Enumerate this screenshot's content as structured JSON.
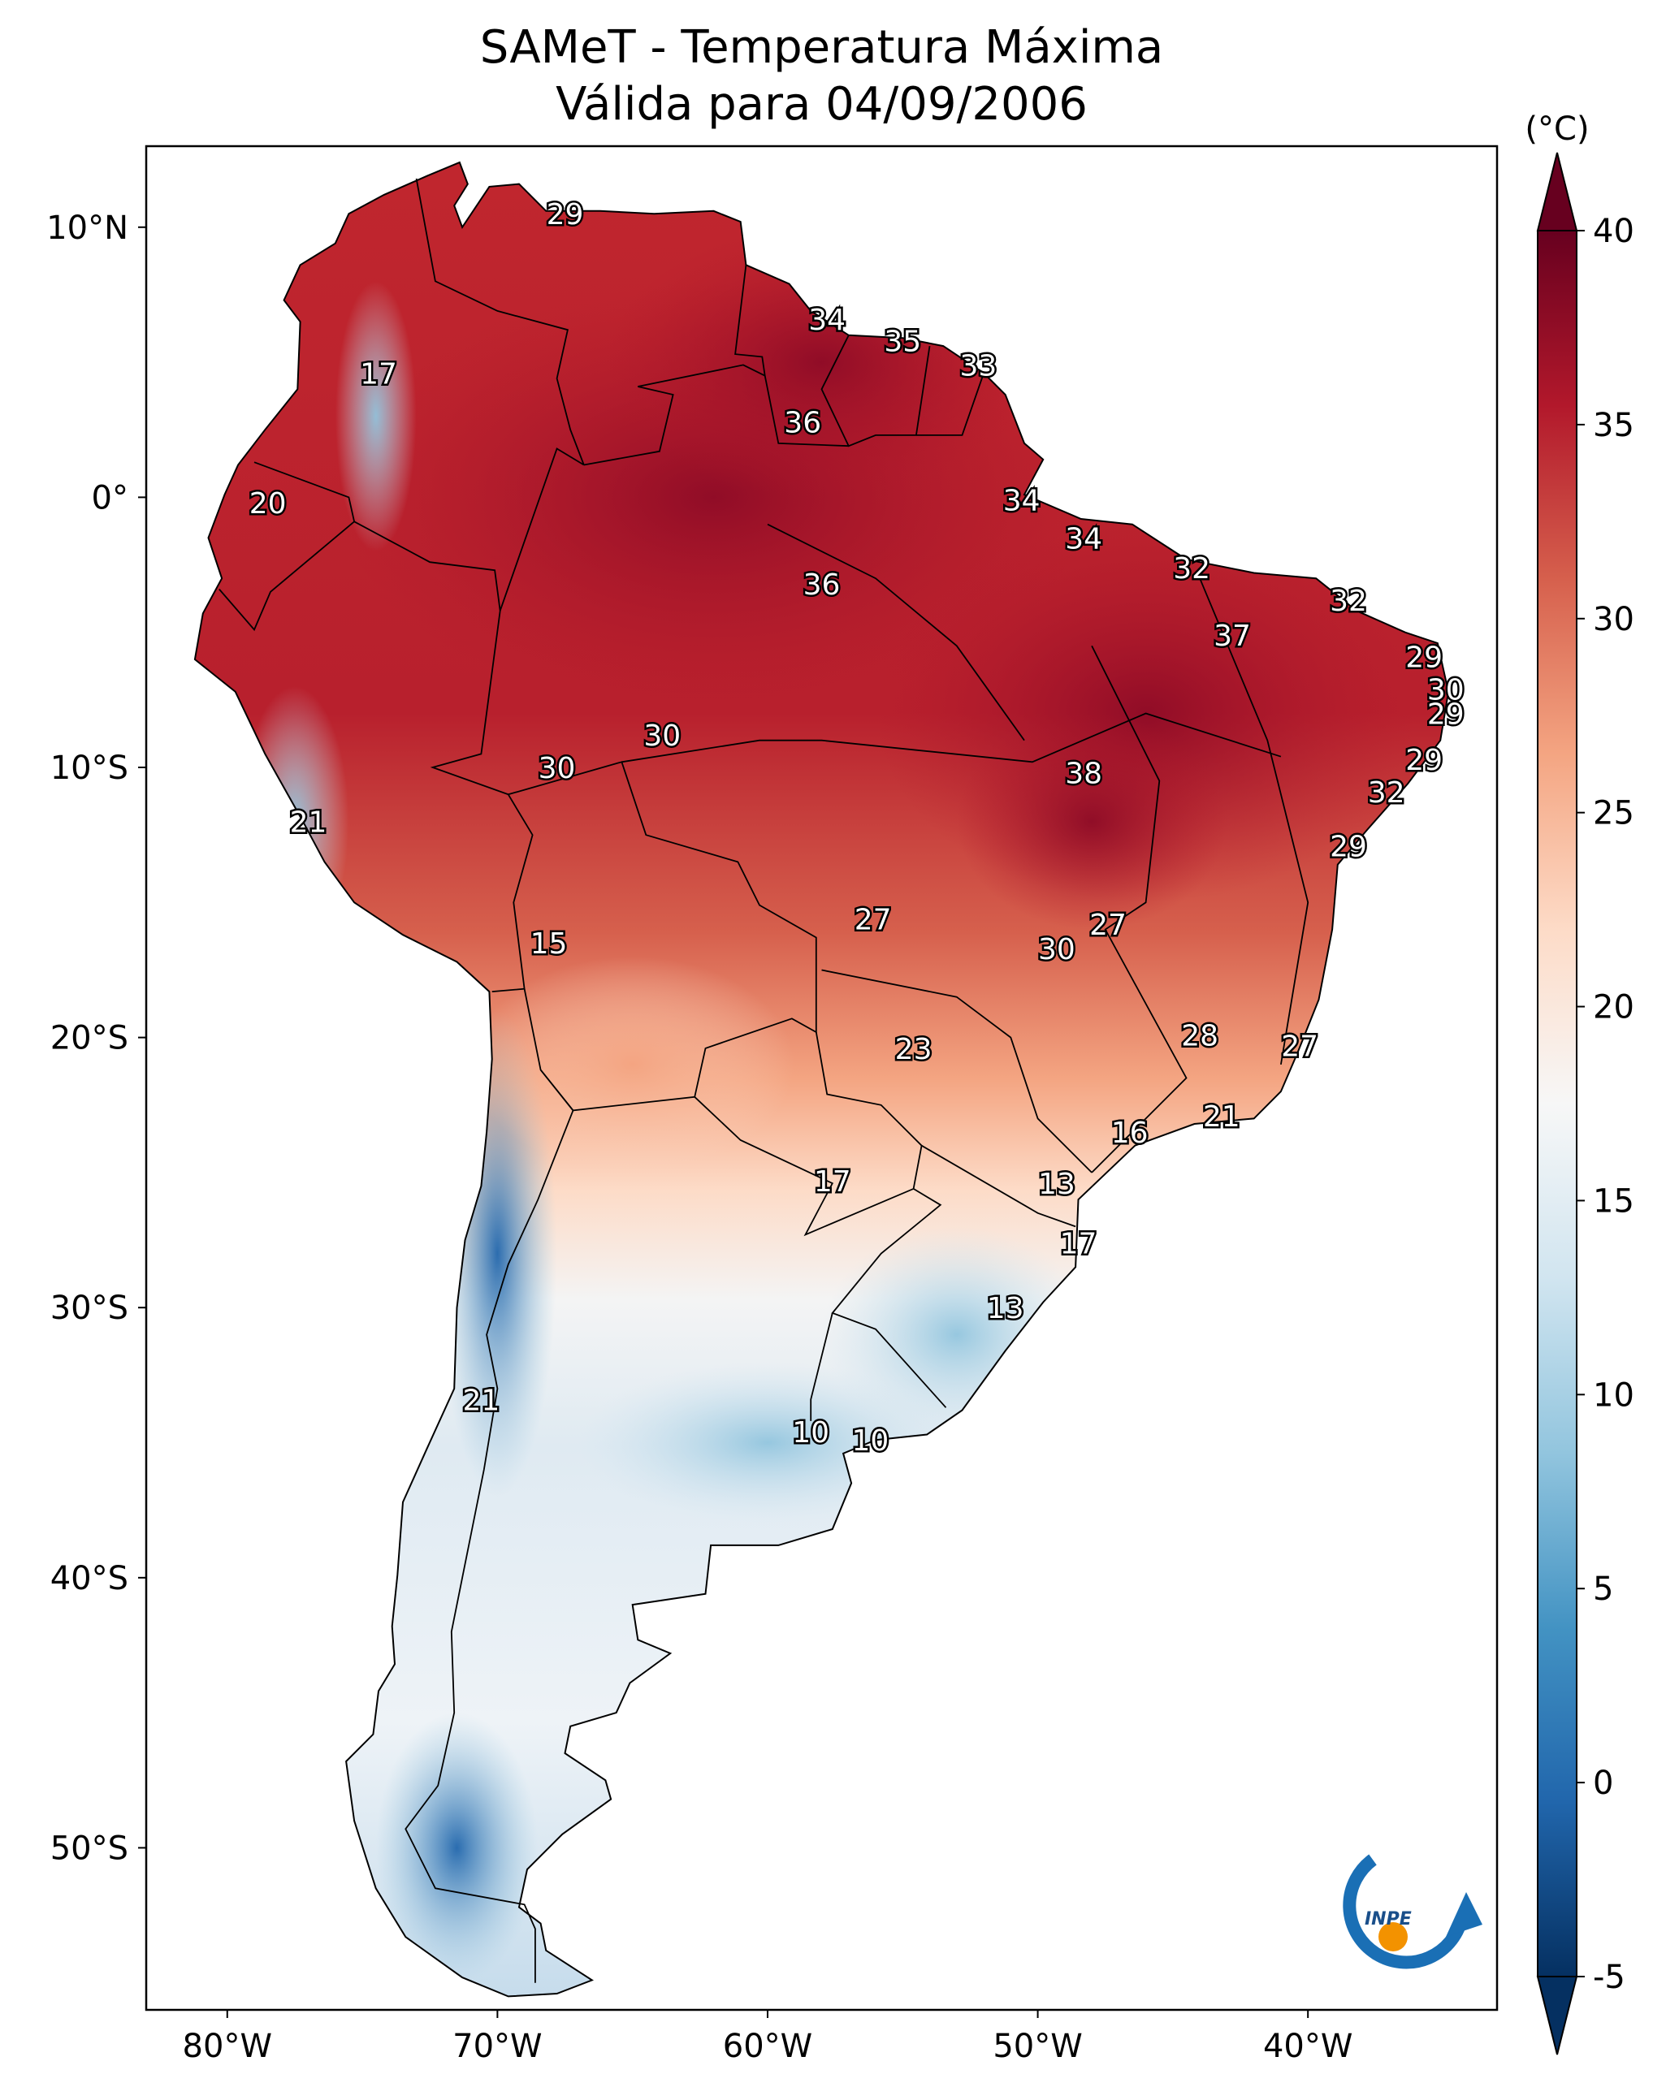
{
  "title": {
    "line1": "SAMeT - Temperatura Máxima",
    "line2": "Válida para 04/09/2006"
  },
  "colorbar": {
    "unit": "(°C)",
    "ticks": [
      40,
      35,
      30,
      25,
      20,
      15,
      10,
      5,
      0,
      -5
    ],
    "range": [
      -5,
      40
    ],
    "colors": [
      "#053061",
      "#2166ac",
      "#4393c3",
      "#92c5de",
      "#d1e5f0",
      "#f7f7f7",
      "#fddbc7",
      "#f4a582",
      "#d6604d",
      "#b2182b",
      "#67001f"
    ]
  },
  "axes": {
    "lon_labels": [
      "80°W",
      "70°W",
      "60°W",
      "50°W",
      "40°W"
    ],
    "lat_labels": [
      "10°N",
      "0°",
      "10°S",
      "20°S",
      "30°S",
      "40°S",
      "50°S"
    ],
    "lon_range": [
      -83,
      -33
    ],
    "lat_range": [
      -56,
      13
    ]
  },
  "logo": {
    "text": "INPE",
    "icon": "inpe-logo-icon"
  },
  "chart_data": {
    "type": "map",
    "title": "SAMeT - Temperatura Máxima Válida para 04/09/2006",
    "variable": "Temperatura Máxima",
    "unit": "°C",
    "date": "04/09/2006",
    "colorbar_range": [
      -5,
      40
    ],
    "station_values": [
      {
        "lon": -67.5,
        "lat": 10.5,
        "value": "29"
      },
      {
        "lon": -57.8,
        "lat": 6.6,
        "value": "34"
      },
      {
        "lon": -55.0,
        "lat": 5.8,
        "value": "35"
      },
      {
        "lon": -52.2,
        "lat": 4.9,
        "value": "33"
      },
      {
        "lon": -58.7,
        "lat": 2.8,
        "value": "36"
      },
      {
        "lon": -74.4,
        "lat": 4.6,
        "value": "17"
      },
      {
        "lon": -78.5,
        "lat": -0.2,
        "value": "20"
      },
      {
        "lon": -50.6,
        "lat": -0.1,
        "value": "34"
      },
      {
        "lon": -48.3,
        "lat": -1.5,
        "value": "34"
      },
      {
        "lon": -58.0,
        "lat": -3.2,
        "value": "36"
      },
      {
        "lon": -44.3,
        "lat": -2.6,
        "value": "32"
      },
      {
        "lon": -38.5,
        "lat": -3.8,
        "value": "32"
      },
      {
        "lon": -42.8,
        "lat": -5.1,
        "value": "37"
      },
      {
        "lon": -35.7,
        "lat": -5.9,
        "value": "29"
      },
      {
        "lon": -34.9,
        "lat": -7.1,
        "value": "30"
      },
      {
        "lon": -34.9,
        "lat": -8.0,
        "value": "29"
      },
      {
        "lon": -35.7,
        "lat": -9.7,
        "value": "29"
      },
      {
        "lon": -37.1,
        "lat": -10.9,
        "value": "32"
      },
      {
        "lon": -63.9,
        "lat": -8.8,
        "value": "30"
      },
      {
        "lon": -67.8,
        "lat": -10.0,
        "value": "30"
      },
      {
        "lon": -48.3,
        "lat": -10.2,
        "value": "38"
      },
      {
        "lon": -38.5,
        "lat": -12.9,
        "value": "29"
      },
      {
        "lon": -77.0,
        "lat": -12.0,
        "value": "21"
      },
      {
        "lon": -68.1,
        "lat": -16.5,
        "value": "15"
      },
      {
        "lon": -56.1,
        "lat": -15.6,
        "value": "27"
      },
      {
        "lon": -47.4,
        "lat": -15.8,
        "value": "27"
      },
      {
        "lon": -49.3,
        "lat": -16.7,
        "value": "30"
      },
      {
        "lon": -54.6,
        "lat": -20.4,
        "value": "23"
      },
      {
        "lon": -44.0,
        "lat": -19.9,
        "value": "28"
      },
      {
        "lon": -40.3,
        "lat": -20.3,
        "value": "27"
      },
      {
        "lon": -43.2,
        "lat": -22.9,
        "value": "21"
      },
      {
        "lon": -46.6,
        "lat": -23.5,
        "value": "16"
      },
      {
        "lon": -57.6,
        "lat": -25.3,
        "value": "17"
      },
      {
        "lon": -49.3,
        "lat": -25.4,
        "value": "13"
      },
      {
        "lon": -48.5,
        "lat": -27.6,
        "value": "17"
      },
      {
        "lon": -51.2,
        "lat": -30.0,
        "value": "13"
      },
      {
        "lon": -70.6,
        "lat": -33.4,
        "value": "21"
      },
      {
        "lon": -58.4,
        "lat": -34.6,
        "value": "10"
      },
      {
        "lon": -56.2,
        "lat": -34.9,
        "value": "10"
      }
    ]
  }
}
